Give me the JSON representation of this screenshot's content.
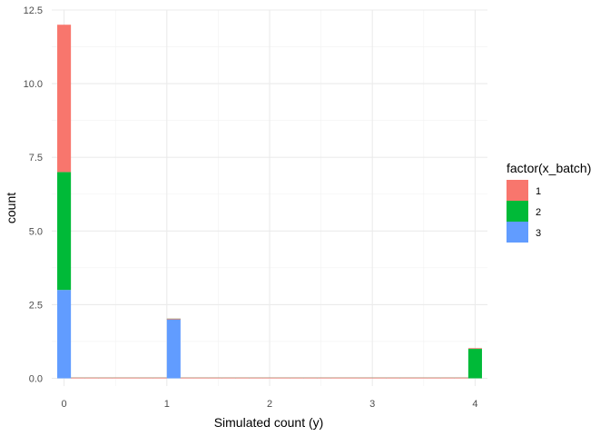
{
  "chart_data": {
    "type": "bar",
    "stacked": true,
    "title": "",
    "xlabel": "Simulated count (y)",
    "ylabel": "count",
    "xlim": [
      -0.12,
      4.12
    ],
    "ylim": [
      0,
      12.5
    ],
    "x_ticks": [
      0,
      1,
      2,
      3,
      4
    ],
    "x_tick_labels": [
      "0",
      "1",
      "2",
      "3",
      "4"
    ],
    "y_ticks": [
      0,
      2.5,
      5,
      7.5,
      10,
      12.5
    ],
    "y_tick_labels": [
      "0.0",
      "2.5",
      "5.0",
      "7.5",
      "10.0",
      "12.5"
    ],
    "grid": true,
    "bin_width": 0.1333,
    "bins": [
      0,
      0.1333,
      0.2667,
      0.4,
      0.5333,
      0.6667,
      0.8,
      0.9333,
      1.0667,
      1.2,
      1.3333,
      1.4667,
      1.6,
      1.7333,
      1.8667,
      2.0,
      2.1333,
      2.2667,
      2.4,
      2.5333,
      2.6667,
      2.8,
      2.9333,
      3.0667,
      3.2,
      3.3333,
      3.4667,
      3.6,
      3.7333,
      3.8667,
      4.0
    ],
    "legend": {
      "title": "factor(x_batch)",
      "position": "right"
    },
    "series": [
      {
        "name": "3",
        "color": "#619CFF",
        "values": [
          3,
          0,
          0,
          0,
          0,
          0,
          0,
          0,
          2,
          0,
          0,
          0,
          0,
          0,
          0,
          0,
          0,
          0,
          0,
          0,
          0,
          0,
          0,
          0,
          0,
          0,
          0,
          0,
          0,
          0,
          0
        ]
      },
      {
        "name": "2",
        "color": "#00BA38",
        "values": [
          4,
          0,
          0,
          0,
          0,
          0,
          0,
          0,
          0,
          0,
          0,
          0,
          0,
          0,
          0,
          0,
          0,
          0,
          0,
          0,
          0,
          0,
          0,
          0,
          0,
          0,
          0,
          0,
          0,
          0,
          1
        ]
      },
      {
        "name": "1",
        "color": "#F8766D",
        "values": [
          5,
          0,
          0,
          0,
          0,
          0,
          0,
          0,
          0,
          0,
          0,
          0,
          0,
          0,
          0,
          0,
          0,
          0,
          0,
          0,
          0,
          0,
          0,
          0,
          0,
          0,
          0,
          0,
          0,
          0,
          0
        ]
      }
    ],
    "legend_order": [
      "1",
      "2",
      "3"
    ]
  }
}
